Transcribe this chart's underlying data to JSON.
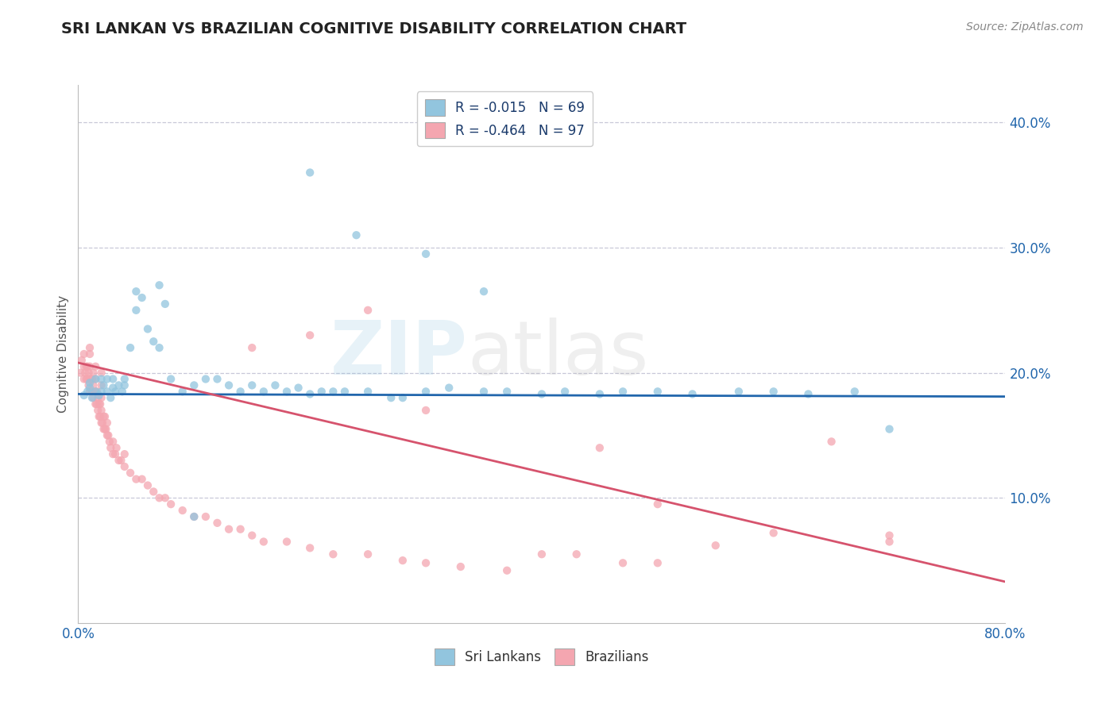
{
  "title": "SRI LANKAN VS BRAZILIAN COGNITIVE DISABILITY CORRELATION CHART",
  "source_text": "Source: ZipAtlas.com",
  "ylabel": "Cognitive Disability",
  "xlim": [
    0.0,
    0.8
  ],
  "ylim": [
    0.0,
    0.43
  ],
  "xticks": [
    0.0,
    0.1,
    0.2,
    0.3,
    0.4,
    0.5,
    0.6,
    0.7,
    0.8
  ],
  "xticklabels": [
    "0.0%",
    "",
    "",
    "",
    "",
    "",
    "",
    "",
    "80.0%"
  ],
  "yticks": [
    0.0,
    0.1,
    0.2,
    0.3,
    0.4
  ],
  "yticklabels": [
    "",
    "10.0%",
    "20.0%",
    "30.0%",
    "40.0%"
  ],
  "sri_lankan_color": "#92c5de",
  "brazilian_color": "#f4a6b0",
  "trend_sri_lankan_color": "#2166ac",
  "trend_brazilian_color": "#d6536d",
  "background_color": "#ffffff",
  "grid_color": "#c8c8d8",
  "legend_label_color": "#1a3a6b",
  "watermark_zip_color": "#7ab8d9",
  "watermark_atlas_color": "#aaaaaa",
  "sri_lankan_trend_x": [
    0.0,
    0.8
  ],
  "sri_lankan_trend_y": [
    0.183,
    0.181
  ],
  "brazilian_trend_x": [
    0.0,
    0.8
  ],
  "brazilian_trend_y": [
    0.208,
    0.033
  ],
  "sri_lankans_x": [
    0.005,
    0.008,
    0.01,
    0.01,
    0.012,
    0.015,
    0.015,
    0.018,
    0.02,
    0.02,
    0.022,
    0.025,
    0.025,
    0.028,
    0.03,
    0.03,
    0.032,
    0.035,
    0.038,
    0.04,
    0.04,
    0.045,
    0.05,
    0.05,
    0.055,
    0.06,
    0.065,
    0.07,
    0.07,
    0.075,
    0.08,
    0.09,
    0.1,
    0.11,
    0.12,
    0.13,
    0.14,
    0.15,
    0.16,
    0.17,
    0.18,
    0.19,
    0.2,
    0.21,
    0.22,
    0.23,
    0.25,
    0.27,
    0.28,
    0.3,
    0.32,
    0.35,
    0.37,
    0.4,
    0.42,
    0.45,
    0.47,
    0.5,
    0.53,
    0.57,
    0.6,
    0.63,
    0.67,
    0.7,
    0.2,
    0.24,
    0.3,
    0.35,
    0.1
  ],
  "sri_lankans_y": [
    0.182,
    0.185,
    0.188,
    0.192,
    0.18,
    0.185,
    0.195,
    0.182,
    0.185,
    0.195,
    0.19,
    0.185,
    0.195,
    0.18,
    0.188,
    0.195,
    0.185,
    0.19,
    0.185,
    0.19,
    0.195,
    0.22,
    0.25,
    0.265,
    0.26,
    0.235,
    0.225,
    0.22,
    0.27,
    0.255,
    0.195,
    0.185,
    0.19,
    0.195,
    0.195,
    0.19,
    0.185,
    0.19,
    0.185,
    0.19,
    0.185,
    0.188,
    0.183,
    0.185,
    0.185,
    0.185,
    0.185,
    0.18,
    0.18,
    0.185,
    0.188,
    0.185,
    0.185,
    0.183,
    0.185,
    0.183,
    0.185,
    0.185,
    0.183,
    0.185,
    0.185,
    0.183,
    0.185,
    0.155,
    0.36,
    0.31,
    0.295,
    0.265,
    0.085
  ],
  "brazilians_x": [
    0.002,
    0.003,
    0.005,
    0.005,
    0.005,
    0.006,
    0.007,
    0.007,
    0.008,
    0.008,
    0.009,
    0.009,
    0.01,
    0.01,
    0.01,
    0.01,
    0.01,
    0.012,
    0.012,
    0.013,
    0.013,
    0.013,
    0.015,
    0.015,
    0.015,
    0.015,
    0.016,
    0.016,
    0.017,
    0.017,
    0.018,
    0.018,
    0.019,
    0.019,
    0.02,
    0.02,
    0.02,
    0.02,
    0.02,
    0.021,
    0.022,
    0.022,
    0.023,
    0.023,
    0.024,
    0.025,
    0.025,
    0.026,
    0.027,
    0.028,
    0.03,
    0.03,
    0.032,
    0.033,
    0.035,
    0.037,
    0.04,
    0.04,
    0.045,
    0.05,
    0.055,
    0.06,
    0.065,
    0.07,
    0.075,
    0.08,
    0.09,
    0.1,
    0.11,
    0.12,
    0.13,
    0.14,
    0.15,
    0.16,
    0.18,
    0.2,
    0.22,
    0.25,
    0.28,
    0.3,
    0.33,
    0.37,
    0.4,
    0.43,
    0.47,
    0.5,
    0.55,
    0.6,
    0.65,
    0.7,
    0.15,
    0.2,
    0.25,
    0.3,
    0.45,
    0.5,
    0.7
  ],
  "brazilians_y": [
    0.2,
    0.21,
    0.195,
    0.205,
    0.215,
    0.2,
    0.195,
    0.205,
    0.195,
    0.205,
    0.19,
    0.2,
    0.185,
    0.195,
    0.205,
    0.215,
    0.22,
    0.185,
    0.195,
    0.18,
    0.19,
    0.2,
    0.175,
    0.185,
    0.195,
    0.205,
    0.175,
    0.185,
    0.17,
    0.18,
    0.165,
    0.175,
    0.165,
    0.175,
    0.16,
    0.17,
    0.18,
    0.19,
    0.2,
    0.16,
    0.155,
    0.165,
    0.155,
    0.165,
    0.155,
    0.15,
    0.16,
    0.15,
    0.145,
    0.14,
    0.135,
    0.145,
    0.135,
    0.14,
    0.13,
    0.13,
    0.125,
    0.135,
    0.12,
    0.115,
    0.115,
    0.11,
    0.105,
    0.1,
    0.1,
    0.095,
    0.09,
    0.085,
    0.085,
    0.08,
    0.075,
    0.075,
    0.07,
    0.065,
    0.065,
    0.06,
    0.055,
    0.055,
    0.05,
    0.048,
    0.045,
    0.042,
    0.055,
    0.055,
    0.048,
    0.048,
    0.062,
    0.072,
    0.145,
    0.065,
    0.22,
    0.23,
    0.25,
    0.17,
    0.14,
    0.095,
    0.07
  ]
}
